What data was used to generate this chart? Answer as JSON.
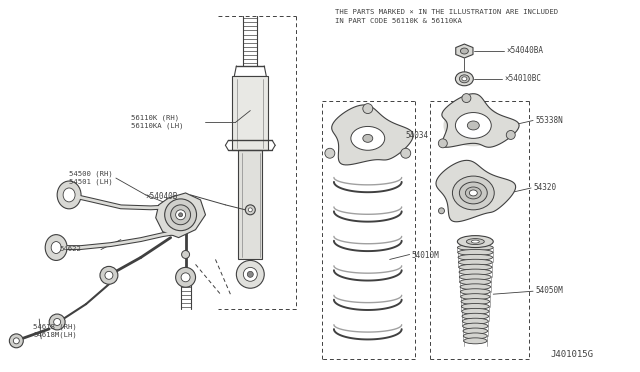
{
  "bg_color": "#ffffff",
  "line_color": "#404040",
  "text_color": "#404040",
  "title_line1": "THE PARTS MARKED × IN THE ILLUSTRATION ARE INCLUDED",
  "title_line2": "IN PART CODE 56110K & 56110KA",
  "diagram_id": "J401015G",
  "figsize": [
    6.4,
    3.72
  ],
  "dpi": 100
}
